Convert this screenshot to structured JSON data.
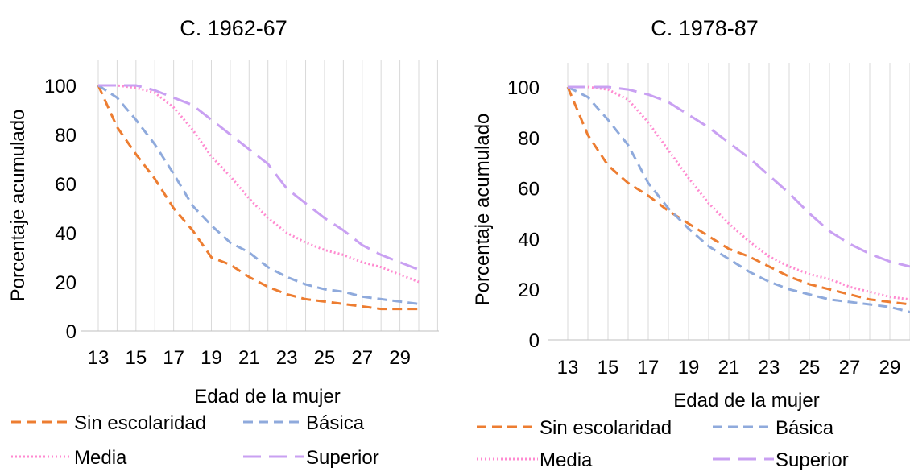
{
  "chart_data": [
    {
      "type": "line",
      "title": "C. 1962-67",
      "xlabel": "Edad de la mujer",
      "ylabel": "Porcentaje acumulado",
      "x": [
        13,
        14,
        15,
        16,
        17,
        18,
        19,
        20,
        21,
        22,
        23,
        24,
        25,
        26,
        27,
        28,
        29,
        30
      ],
      "x_tick_labels": [
        "13",
        "15",
        "17",
        "19",
        "21",
        "23",
        "25",
        "27",
        "29"
      ],
      "y_ticks": [
        0,
        20,
        40,
        60,
        80,
        100
      ],
      "ylim": [
        0,
        110
      ],
      "grid": "vertical",
      "legend_position": "bottom",
      "series": [
        {
          "name": "Sin escolaridad",
          "color": "#ED7D31",
          "dash": "dashed",
          "values": [
            100,
            83,
            72,
            62,
            50,
            41,
            30,
            27,
            22,
            18,
            15,
            13,
            12,
            11,
            10,
            9,
            9,
            9
          ]
        },
        {
          "name": "Básica",
          "color": "#8FAADC",
          "dash": "dashed",
          "values": [
            100,
            95,
            86,
            76,
            64,
            51,
            43,
            36,
            32,
            26,
            22,
            19,
            17,
            16,
            14,
            13,
            12,
            11
          ]
        },
        {
          "name": "Media",
          "color": "#FF8AD0",
          "dash": "dotted",
          "values": [
            100,
            100,
            99,
            97,
            91,
            82,
            71,
            63,
            54,
            46,
            40,
            36,
            33,
            31,
            28,
            26,
            23,
            20
          ]
        },
        {
          "name": "Superior",
          "color": "#C9A0F2",
          "dash": "longdash",
          "values": [
            100,
            100,
            100,
            98,
            95,
            92,
            86,
            80,
            74,
            68,
            58,
            52,
            46,
            41,
            35,
            31,
            28,
            25
          ]
        }
      ]
    },
    {
      "type": "line",
      "title": "C. 1978-87",
      "xlabel": "Edad de la mujer",
      "ylabel": "Porcentaje acumulado",
      "x": [
        13,
        14,
        15,
        16,
        17,
        18,
        19,
        20,
        21,
        22,
        23,
        24,
        25,
        26,
        27,
        28,
        29,
        30
      ],
      "x_tick_labels": [
        "13",
        "15",
        "17",
        "19",
        "21",
        "23",
        "25",
        "27",
        "29"
      ],
      "y_ticks": [
        0,
        20,
        40,
        60,
        80,
        100
      ],
      "ylim": [
        0,
        110
      ],
      "grid": "vertical",
      "legend_position": "bottom",
      "series": [
        {
          "name": "Sin escolaridad",
          "color": "#ED7D31",
          "dash": "dashed",
          "values": [
            100,
            81,
            69,
            62,
            57,
            51,
            46,
            41,
            36,
            33,
            29,
            25,
            22,
            20,
            18,
            16,
            15,
            14
          ]
        },
        {
          "name": "Básica",
          "color": "#8FAADC",
          "dash": "dashed",
          "values": [
            100,
            96,
            87,
            77,
            62,
            52,
            44,
            37,
            32,
            27,
            23,
            20,
            18,
            16,
            15,
            14,
            13,
            11
          ]
        },
        {
          "name": "Media",
          "color": "#FF8AD0",
          "dash": "dotted",
          "values": [
            100,
            100,
            99,
            95,
            86,
            75,
            64,
            54,
            46,
            39,
            33,
            29,
            26,
            24,
            21,
            19,
            17,
            16
          ]
        },
        {
          "name": "Superior",
          "color": "#C9A0F2",
          "dash": "longdash",
          "values": [
            100,
            100,
            100,
            99,
            97,
            94,
            89,
            84,
            78,
            72,
            65,
            58,
            50,
            43,
            38,
            34,
            31,
            29
          ]
        }
      ]
    }
  ]
}
